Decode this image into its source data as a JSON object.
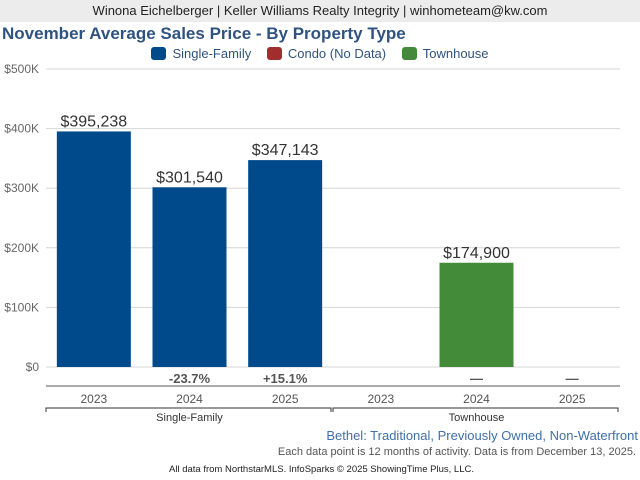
{
  "header": {
    "agent_line": "Winona Eichelberger | Keller Williams Realty Integrity | winhometeam@kw.com"
  },
  "chart_data": {
    "type": "bar",
    "title": "November Average Sales Price - By Property Type",
    "xlabel": "",
    "ylabel": "",
    "ylim": [
      0,
      500000
    ],
    "yticks": [
      {
        "value": 0,
        "label": "$0"
      },
      {
        "value": 100000,
        "label": "$100K"
      },
      {
        "value": 200000,
        "label": "$200K"
      },
      {
        "value": 300000,
        "label": "$300K"
      },
      {
        "value": 400000,
        "label": "$400K"
      },
      {
        "value": 500000,
        "label": "$500K"
      }
    ],
    "grid": true,
    "legend_position": "top-center",
    "legend": [
      {
        "name": "Single-Family",
        "color": "#004a8c"
      },
      {
        "name": "Condo (No Data)",
        "color": "#a12e2e"
      },
      {
        "name": "Townhouse",
        "color": "#438b38"
      }
    ],
    "groups": [
      {
        "name": "Single-Family",
        "color": "#004a8c",
        "categories": [
          "2023",
          "2024",
          "2025"
        ],
        "values": [
          395238,
          301540,
          347143
        ],
        "value_labels": [
          "$395,238",
          "$301,540",
          "$347,143"
        ],
        "changes": [
          "",
          "-23.7%",
          "+15.1%"
        ]
      },
      {
        "name": "Townhouse",
        "color": "#438b38",
        "categories": [
          "2023",
          "2024",
          "2025"
        ],
        "values": [
          null,
          174900,
          null
        ],
        "value_labels": [
          "",
          "$174,900",
          ""
        ],
        "changes": [
          "",
          "—",
          "—"
        ]
      }
    ]
  },
  "subtitle": "Bethel: Traditional, Previously Owned, Non-Waterfront",
  "note": "Each data point is 12 months of activity. Data is from December 13, 2025.",
  "footer": "All data from NorthstarMLS. InfoSparks © 2025 ShowingTime Plus, LLC."
}
